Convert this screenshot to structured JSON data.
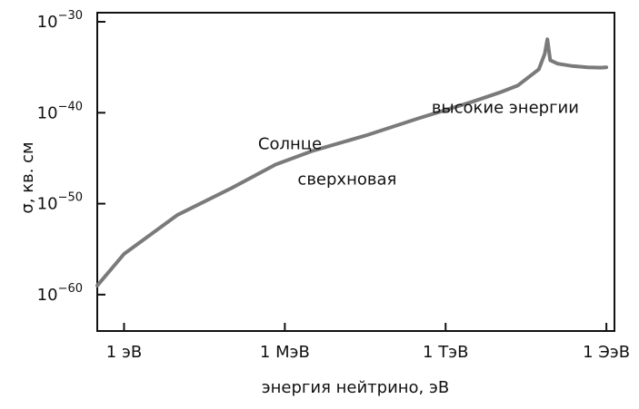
{
  "chart_data": {
    "type": "line",
    "title": "",
    "xlabel": "энергия нейтрино, эВ",
    "ylabel": "σ, кв. см",
    "x_scale": "log",
    "y_scale": "log",
    "xlim": [
      0.1,
      2e+18
    ],
    "ylim": [
      1e-64,
      1e-29
    ],
    "x_ticks": [
      {
        "value": 1,
        "label": "1 эВ"
      },
      {
        "value": 1000000.0,
        "label": "1 МэВ"
      },
      {
        "value": 1000000000000.0,
        "label": "1 ТэВ"
      },
      {
        "value": 1e+18,
        "label": "1 ЭэВ"
      }
    ],
    "y_ticks": [
      {
        "value": 1e-60,
        "base": "10",
        "exp": "−60"
      },
      {
        "value": 1e-50,
        "base": "10",
        "exp": "−50"
      },
      {
        "value": 1e-40,
        "base": "10",
        "exp": "−40"
      },
      {
        "value": 1e-30,
        "base": "10",
        "exp": "−30"
      }
    ],
    "series": [
      {
        "color": "#7a7a7a",
        "points": [
          [
            0.1,
            1e-59
          ],
          [
            1,
            3e-56
          ],
          [
            100.0,
            6e-52
          ],
          [
            10000.0,
            5e-49
          ],
          [
            450000.0,
            2e-46
          ],
          [
            10000000.0,
            6e-45
          ],
          [
            1000000000.0,
            3e-43
          ],
          [
            100000000000.0,
            2.5e-41
          ],
          [
            10000000000000.0,
            1.6e-39
          ],
          [
            100000000000000.0,
            1.6e-38
          ],
          [
            500000000000000.0,
            1e-37
          ],
          [
            3000000000000000.0,
            6e-36
          ],
          [
            5000000000000000.0,
            3e-34
          ],
          [
            6300000000000000.0,
            1.2e-32
          ],
          [
            8000000000000000.0,
            6e-35
          ],
          [
            1.5e+16,
            2.5e-35
          ],
          [
            5e+16,
            1.4e-35
          ],
          [
            2e+17,
            1e-35
          ],
          [
            6e+17,
            9e-36
          ],
          [
            1e+18,
            1e-35
          ]
        ]
      }
    ],
    "annotations": [
      {
        "text": "Солнце",
        "x": 100000.0,
        "y": 1e-44
      },
      {
        "text": "сверхновая",
        "x": 3000000.0,
        "y": 1.3e-48
      },
      {
        "text": "высокие энергии",
        "x": 300000000000.0,
        "y": 1e-40
      }
    ],
    "grid": false,
    "legend": "none"
  }
}
